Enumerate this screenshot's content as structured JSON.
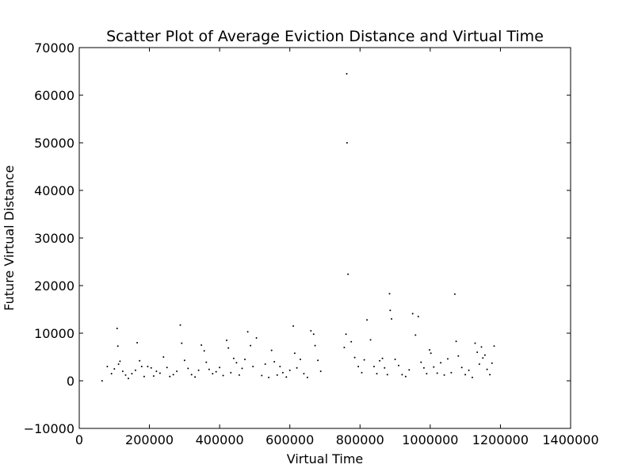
{
  "chart_data": {
    "type": "scatter",
    "title": "Scatter Plot of Average Eviction Distance and Virtual Time",
    "xlabel": "Virtual Time",
    "ylabel": "Future Virtual Distance",
    "xlim": [
      0,
      1400000
    ],
    "ylim": [
      -10000,
      70000
    ],
    "x_ticks": [
      "0",
      "200000",
      "400000",
      "600000",
      "800000",
      "1000000",
      "1200000",
      "1400000"
    ],
    "y_ticks": [
      "−10000",
      "0",
      "10000",
      "20000",
      "30000",
      "40000",
      "50000",
      "60000",
      "70000"
    ],
    "grid": false,
    "legend": "none",
    "marker_color": "#000000",
    "series": [
      {
        "x": [
          65000,
          80000,
          92000,
          100000,
          108000,
          110000,
          112000,
          116000,
          124000,
          132000,
          140000,
          150000,
          160000,
          165000,
          172000,
          178000,
          185000,
          195000,
          205000,
          212000,
          220000,
          230000,
          240000,
          250000,
          258000,
          268000,
          278000,
          288000,
          292000,
          300000,
          310000,
          320000,
          330000,
          340000,
          348000,
          356000,
          362000,
          370000,
          380000,
          390000,
          400000,
          410000,
          420000,
          425000,
          432000,
          440000,
          448000,
          456000,
          464000,
          472000,
          480000,
          488000,
          495000,
          505000,
          520000,
          530000,
          540000,
          548000,
          556000,
          564000,
          572000,
          580000,
          590000,
          600000,
          610000,
          614000,
          620000,
          630000,
          640000,
          650000,
          660000,
          668000,
          672000,
          680000,
          688000,
          755000,
          760000,
          762000,
          763000,
          766000,
          775000,
          785000,
          795000,
          805000,
          812000,
          820000,
          830000,
          840000,
          848000,
          856000,
          864000,
          870000,
          878000,
          884000,
          886000,
          890000,
          900000,
          910000,
          920000,
          930000,
          940000,
          950000,
          958000,
          966000,
          974000,
          982000,
          990000,
          998000,
          1002000,
          1010000,
          1020000,
          1030000,
          1040000,
          1050000,
          1060000,
          1070000,
          1074000,
          1080000,
          1090000,
          1100000,
          1110000,
          1120000,
          1128000,
          1134000,
          1140000,
          1146000,
          1150000,
          1156000,
          1162000,
          1170000,
          1176000,
          1182000
        ],
        "y": [
          0,
          3000,
          1500,
          2500,
          11000,
          7300,
          3500,
          4100,
          2000,
          1200,
          500,
          1500,
          2200,
          8000,
          4200,
          3000,
          900,
          3000,
          2700,
          1000,
          2000,
          1600,
          5000,
          2800,
          900,
          1300,
          2000,
          11700,
          7900,
          4300,
          2600,
          1300,
          800,
          2200,
          7500,
          6300,
          3900,
          2400,
          1500,
          1900,
          2800,
          1100,
          8500,
          6900,
          1700,
          4700,
          3800,
          1200,
          2600,
          4500,
          10300,
          7400,
          3000,
          9000,
          1100,
          3500,
          700,
          6400,
          4000,
          1200,
          3000,
          1700,
          800,
          2200,
          11500,
          5800,
          2700,
          4500,
          1500,
          700,
          10500,
          9800,
          7400,
          4300,
          2000,
          7000,
          9800,
          64500,
          50000,
          22400,
          8200,
          4900,
          3000,
          1700,
          4400,
          12800,
          8600,
          3000,
          1500,
          4200,
          4700,
          2700,
          1300,
          18300,
          14800,
          13000,
          4500,
          3200,
          1300,
          900,
          2300,
          14100,
          9600,
          13500,
          3900,
          2700,
          1500,
          6500,
          5800,
          2900,
          1600,
          3800,
          1200,
          4600,
          1700,
          18200,
          8300,
          5200,
          2800,
          1300,
          2200,
          700,
          7900,
          6000,
          3500,
          7100,
          4800,
          5400,
          2400,
          1300,
          3700,
          7300
        ]
      }
    ]
  }
}
